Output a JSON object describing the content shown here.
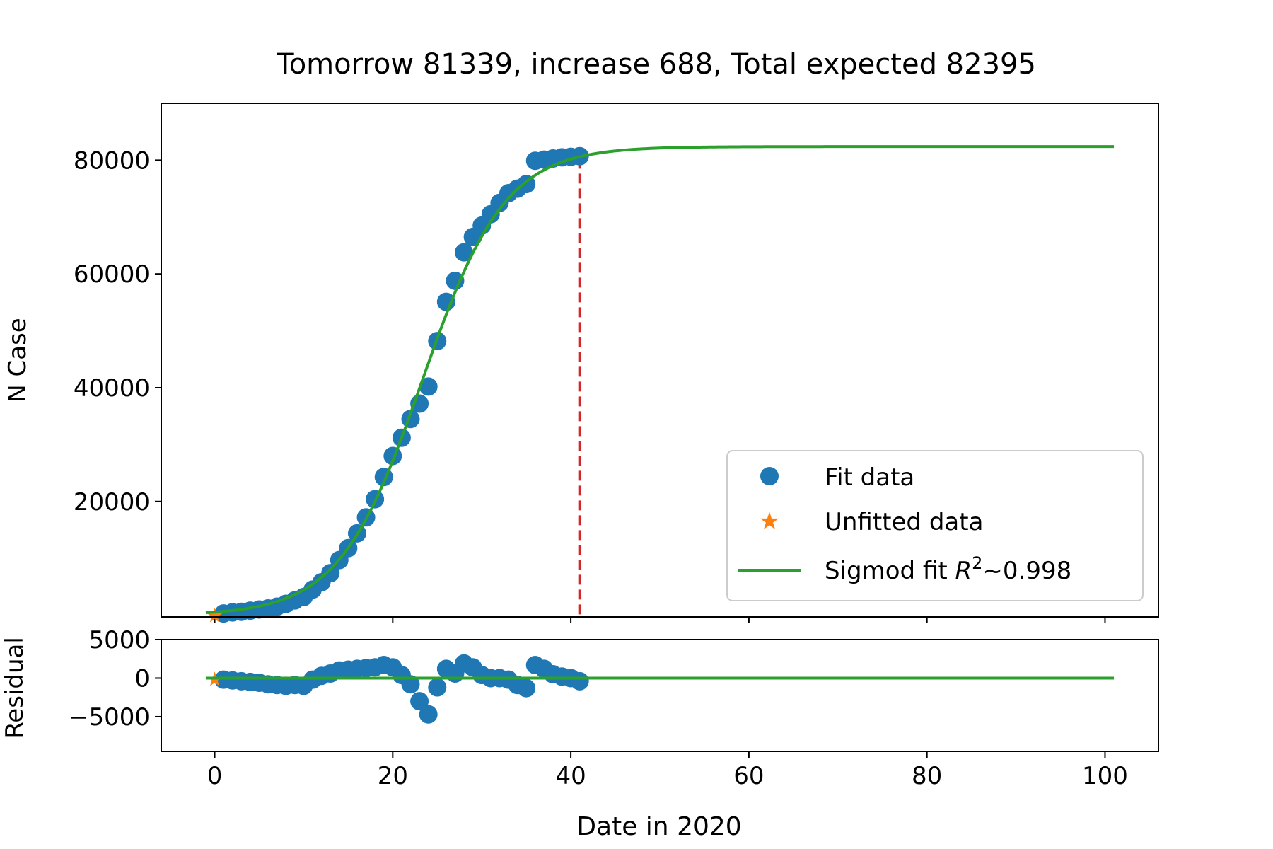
{
  "chart_data": [
    {
      "type": "scatter",
      "title": "Tomorrow 81339, increase 688, Total expected 82395",
      "xlabel": "",
      "ylabel": "N Case",
      "xlim": [
        -6,
        106
      ],
      "ylim": [
        -300,
        90000
      ],
      "yticks": [
        20000,
        40000,
        60000,
        80000
      ],
      "ytick_labels": [
        "20000",
        "40000",
        "60000",
        "80000"
      ],
      "xticks": [
        0,
        20,
        40,
        60,
        80,
        100
      ],
      "grid": false,
      "legend_position": "lower-right",
      "legend": {
        "fit": "Fit data",
        "unfitted": "Unfitted data",
        "sigmoid_prefix": "Sigmod fit ",
        "sigmoid_var": "R",
        "sigmoid_sup": "2",
        "sigmoid_suffix": "~0.998"
      },
      "series": [
        {
          "name": "Fit data",
          "color": "#1f77b4",
          "x": [
            1,
            2,
            3,
            4,
            5,
            6,
            7,
            8,
            9,
            10,
            11,
            12,
            13,
            14,
            15,
            16,
            17,
            18,
            19,
            20,
            21,
            22,
            23,
            24,
            25,
            26,
            27,
            28,
            29,
            30,
            31,
            32,
            33,
            34,
            35,
            36,
            37,
            38,
            39,
            40,
            41
          ],
          "y": [
            300,
            500,
            600,
            800,
            1000,
            1200,
            1500,
            2000,
            2600,
            3200,
            4500,
            5800,
            7400,
            9700,
            11800,
            14400,
            17200,
            20400,
            24300,
            28000,
            31200,
            34500,
            37200,
            40200,
            48200,
            55100,
            58800,
            63800,
            66500,
            68500,
            70500,
            72500,
            74200,
            75000,
            75800,
            79900,
            80100,
            80300,
            80500,
            80600,
            80700
          ]
        },
        {
          "name": "Unfitted data",
          "color": "#ff7f0e",
          "x": [
            0
          ],
          "y": [
            0
          ]
        },
        {
          "name": "Sigmod fit R^2~0.998",
          "color": "#2ca02c",
          "model": "logistic",
          "L": 82395,
          "x0": 23.3,
          "k": 0.215,
          "x_range": [
            -1,
            101
          ]
        }
      ],
      "marker": {
        "name": "tomorrow-marker",
        "x": 41,
        "color": "#d62728"
      }
    },
    {
      "type": "scatter",
      "title": "",
      "xlabel": "Date in 2020",
      "ylabel": "Residual",
      "xlim": [
        -6,
        106
      ],
      "ylim": [
        -9500,
        5000
      ],
      "xticks": [
        0,
        20,
        40,
        60,
        80,
        100
      ],
      "xtick_labels": [
        "0",
        "20",
        "40",
        "60",
        "80",
        "100"
      ],
      "yticks": [
        -5000,
        0,
        5000
      ],
      "ytick_labels": [
        "−5000",
        "0",
        "5000"
      ],
      "grid": false,
      "series": [
        {
          "name": "Fit data residual",
          "color": "#1f77b4",
          "x": [
            1,
            2,
            3,
            4,
            5,
            6,
            7,
            8,
            9,
            10,
            11,
            12,
            13,
            14,
            15,
            16,
            17,
            18,
            19,
            20,
            21,
            22,
            23,
            24,
            25,
            26,
            27,
            28,
            29,
            30,
            31,
            32,
            33,
            34,
            35,
            36,
            37,
            38,
            39,
            40,
            41
          ],
          "y": [
            -200,
            -300,
            -400,
            -500,
            -600,
            -800,
            -900,
            -1000,
            -900,
            -1000,
            -200,
            300,
            600,
            1000,
            1100,
            1200,
            1300,
            1400,
            1700,
            1400,
            400,
            -800,
            -3000,
            -4700,
            -1200,
            1200,
            600,
            1900,
            1400,
            400,
            0,
            0,
            -200,
            -900,
            -1300,
            1700,
            1200,
            500,
            200,
            0,
            -400
          ]
        },
        {
          "name": "Unfitted data residual",
          "color": "#ff7f0e",
          "x": [
            0
          ],
          "y": [
            -100
          ]
        },
        {
          "name": "Zero line",
          "color": "#2ca02c",
          "x": [
            -1,
            101
          ],
          "y": [
            0,
            0
          ]
        }
      ]
    }
  ]
}
